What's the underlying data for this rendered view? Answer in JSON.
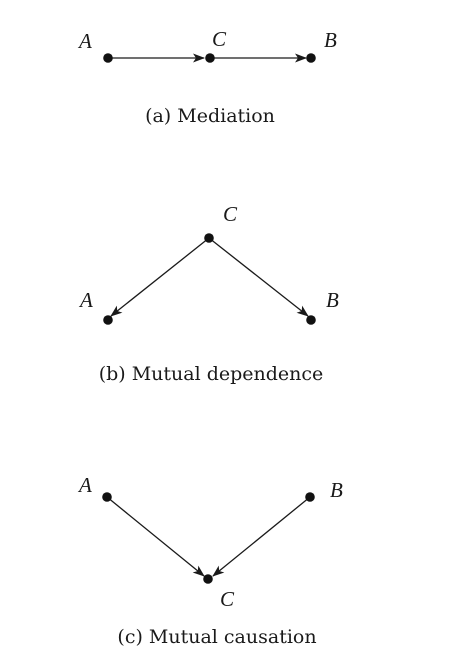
{
  "diagrams": [
    {
      "caption": "(a) Mediation",
      "nodes": {
        "A": "A",
        "C": "C",
        "B": "B"
      },
      "edges": [
        {
          "from": "A",
          "to": "C"
        },
        {
          "from": "C",
          "to": "B"
        }
      ]
    },
    {
      "caption": "(b) Mutual dependence",
      "nodes": {
        "C": "C",
        "A": "A",
        "B": "B"
      },
      "edges": [
        {
          "from": "C",
          "to": "A"
        },
        {
          "from": "C",
          "to": "B"
        }
      ]
    },
    {
      "caption": "(c) Mutual causation",
      "nodes": {
        "A": "A",
        "B": "B",
        "C": "C"
      },
      "edges": [
        {
          "from": "A",
          "to": "C"
        },
        {
          "from": "B",
          "to": "C"
        }
      ]
    }
  ],
  "colors": {
    "ink": "#1a1a1a",
    "background": "#ffffff"
  }
}
